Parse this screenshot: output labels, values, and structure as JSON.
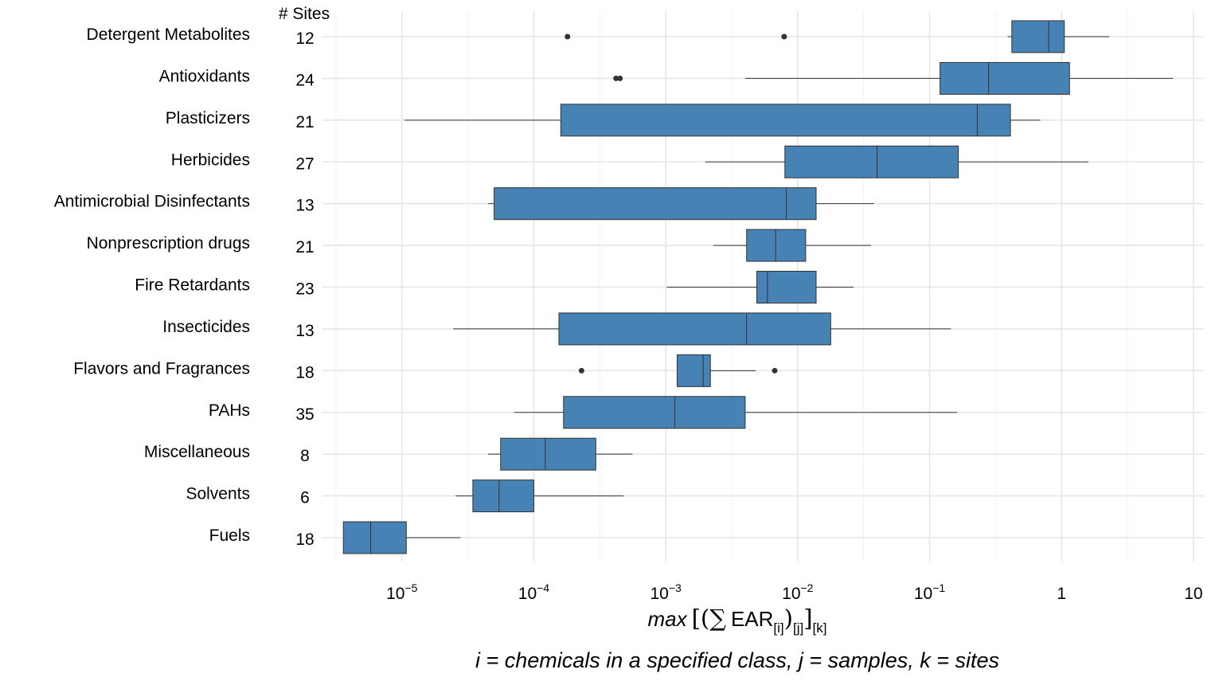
{
  "chart_data": {
    "type": "boxplot",
    "orientation": "horizontal",
    "x_scale": "log10",
    "xlim": [
      2.5e-06,
      12
    ],
    "x_ticks": [
      {
        "value": 1e-05,
        "base": "10",
        "exp": "−5"
      },
      {
        "value": 0.0001,
        "base": "10",
        "exp": "−4"
      },
      {
        "value": 0.001,
        "base": "10",
        "exp": "−3"
      },
      {
        "value": 0.01,
        "base": "10",
        "exp": "−2"
      },
      {
        "value": 0.1,
        "base": "10",
        "exp": "−1"
      },
      {
        "value": 1,
        "base": "1",
        "exp": ""
      },
      {
        "value": 10,
        "base": "10",
        "exp": ""
      }
    ],
    "sites_header": "# Sites",
    "xlabel": {
      "prefix": "max",
      "lbracket": "[(∑",
      "ear": "EAR",
      "sub_i": "[i]",
      "rparen": ")",
      "sub_j": "[j]",
      "rbracket": "]",
      "sub_k": "[k]"
    },
    "caption": "i = chemicals in a specified class, j = samples, k = sites",
    "box_color": "#4682b4",
    "grid": true,
    "categories": [
      {
        "name": "Detergent Metabolites",
        "sites": "12",
        "whisker_low": 0.39,
        "q1": 0.42,
        "median": 0.8,
        "q3": 1.05,
        "whisker_high": 2.3,
        "outliers": [
          0.00018,
          0.0079
        ]
      },
      {
        "name": "Antioxidants",
        "sites": "24",
        "whisker_low": 0.004,
        "q1": 0.12,
        "median": 0.28,
        "q3": 1.15,
        "whisker_high": 7.0,
        "outliers": [
          0.00042,
          0.00045
        ]
      },
      {
        "name": "Plasticizers",
        "sites": "21",
        "whisker_low": 1.05e-05,
        "q1": 0.00016,
        "median": 0.23,
        "q3": 0.41,
        "whisker_high": 0.69,
        "outliers": []
      },
      {
        "name": "Herbicides",
        "sites": "27",
        "whisker_low": 0.002,
        "q1": 0.008,
        "median": 0.04,
        "q3": 0.165,
        "whisker_high": 1.6,
        "outliers": []
      },
      {
        "name": "Antimicrobial Disinfectants",
        "sites": "13",
        "whisker_low": 4.5e-05,
        "q1": 5e-05,
        "median": 0.0082,
        "q3": 0.0138,
        "whisker_high": 0.038,
        "outliers": []
      },
      {
        "name": "Nonprescription drugs",
        "sites": "21",
        "whisker_low": 0.0023,
        "q1": 0.0041,
        "median": 0.0068,
        "q3": 0.0115,
        "whisker_high": 0.036,
        "outliers": []
      },
      {
        "name": "Fire Retardants",
        "sites": "23",
        "whisker_low": 0.00102,
        "q1": 0.0049,
        "median": 0.0059,
        "q3": 0.0138,
        "whisker_high": 0.0265,
        "outliers": []
      },
      {
        "name": "Insecticides",
        "sites": "13",
        "whisker_low": 2.45e-05,
        "q1": 0.000155,
        "median": 0.0041,
        "q3": 0.0178,
        "whisker_high": 0.145,
        "outliers": []
      },
      {
        "name": "Flavors and Fragrances",
        "sites": "18",
        "whisker_low": 0.00122,
        "q1": 0.00122,
        "median": 0.00192,
        "q3": 0.00218,
        "whisker_high": 0.0048,
        "outliers": [
          0.00023,
          0.0067
        ]
      },
      {
        "name": "PAHs",
        "sites": "35",
        "whisker_low": 7.1e-05,
        "q1": 0.000168,
        "median": 0.00117,
        "q3": 0.004,
        "whisker_high": 0.162,
        "outliers": []
      },
      {
        "name": "Miscellaneous",
        "sites": "8",
        "whisker_low": 4.5e-05,
        "q1": 5.6e-05,
        "median": 0.000122,
        "q3": 0.000295,
        "whisker_high": 0.00056,
        "outliers": []
      },
      {
        "name": "Solvents",
        "sites": "6",
        "whisker_low": 2.55e-05,
        "q1": 3.45e-05,
        "median": 5.45e-05,
        "q3": 0.0001,
        "whisker_high": 0.00048,
        "outliers": []
      },
      {
        "name": "Fuels",
        "sites": "18",
        "whisker_low": 3.6e-06,
        "q1": 3.6e-06,
        "median": 5.8e-06,
        "q3": 1.08e-05,
        "whisker_high": 2.78e-05,
        "outliers": []
      }
    ]
  }
}
